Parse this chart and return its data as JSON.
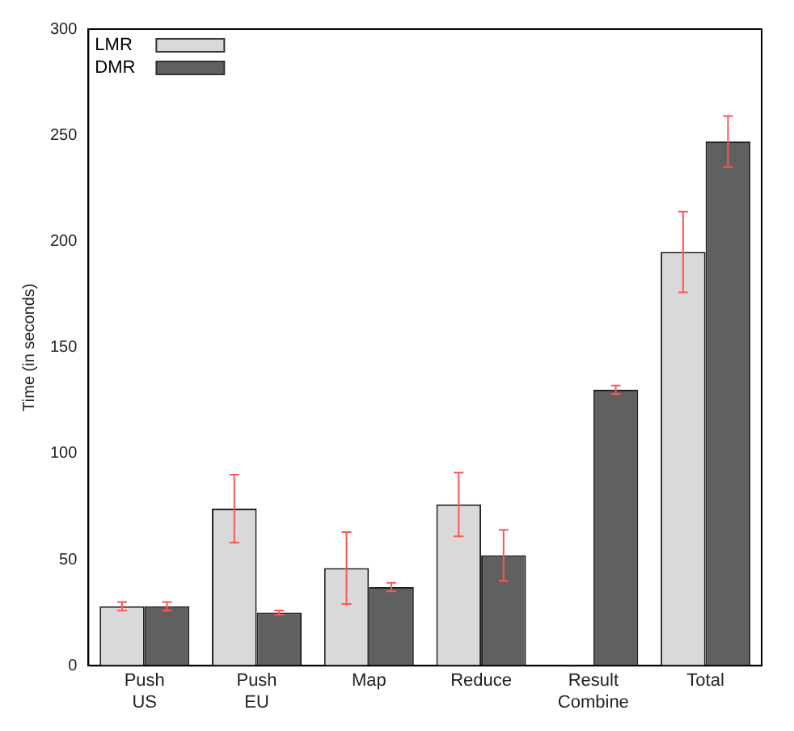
{
  "chart_data": {
    "type": "bar",
    "ylabel": "Time (in seconds)",
    "categories": [
      "Push\nUS",
      "Push\nEU",
      "Map",
      "Reduce",
      "Result\nCombine",
      "Total"
    ],
    "series": [
      {
        "name": "LMR",
        "color": "#d9d9d9",
        "values": [
          28,
          74,
          46,
          76,
          0,
          195
        ],
        "errors": [
          2,
          16,
          17,
          15,
          0,
          19
        ]
      },
      {
        "name": "DMR",
        "color": "#606060",
        "values": [
          28,
          25,
          37,
          52,
          130,
          247
        ],
        "errors": [
          2,
          1,
          2,
          12,
          2,
          12
        ]
      }
    ],
    "ylim": [
      0,
      300
    ],
    "yticks": [
      0,
      50,
      100,
      150,
      200,
      250,
      300
    ],
    "grid": false,
    "legend": "top left"
  }
}
